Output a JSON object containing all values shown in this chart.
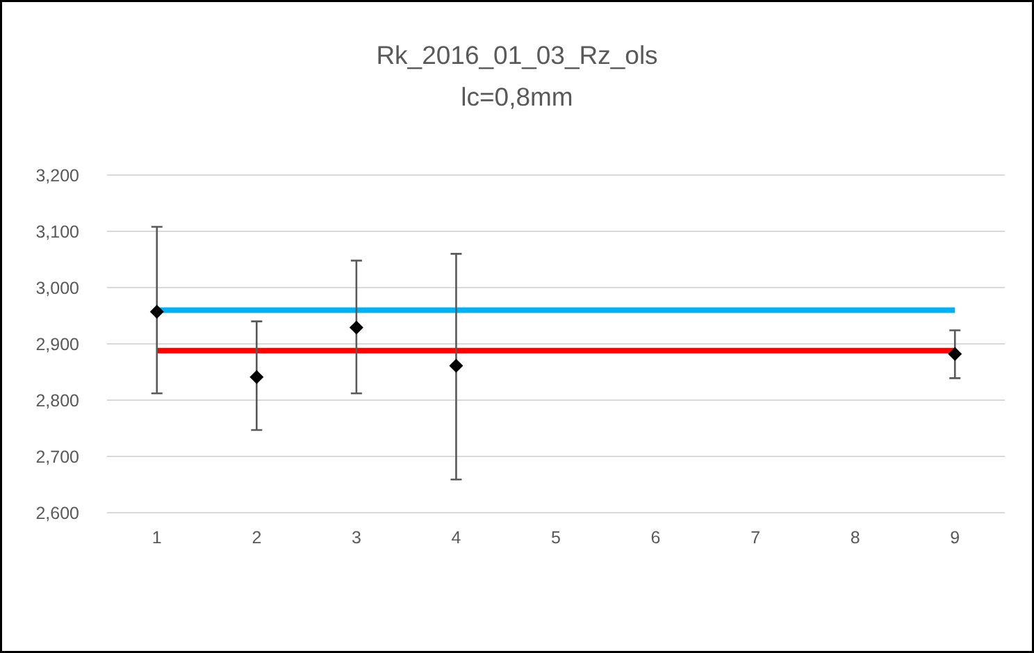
{
  "chart_data": {
    "type": "scatter",
    "title": "Rk_2016_01_03_Rz_ols",
    "subtitle": "lc=0,8mm",
    "categories": [
      "1",
      "2",
      "3",
      "4",
      "5",
      "6",
      "7",
      "8",
      "9"
    ],
    "series": [
      {
        "type": "line",
        "color": "#00b0f0",
        "values": [
          2960,
          2960,
          2960,
          2960,
          2960,
          2960,
          2960,
          2960,
          2960
        ]
      },
      {
        "type": "line",
        "color": "#ff0000",
        "values": [
          2888,
          2888,
          2888,
          2888,
          2888,
          2888,
          2888,
          2888,
          2888
        ]
      },
      {
        "type": "scatter",
        "color": "#000000",
        "marker": "diamond",
        "values": [
          2957,
          2841,
          2929,
          2861,
          null,
          null,
          null,
          null,
          2882
        ],
        "errors": [
          [
            2812,
            3108
          ],
          [
            2747,
            2940
          ],
          [
            2812,
            3048
          ],
          [
            2659,
            3060
          ],
          null,
          null,
          null,
          null,
          [
            2839,
            2924
          ]
        ]
      }
    ],
    "ylim": [
      2600,
      3200
    ],
    "yticks": [
      {
        "value": 2600,
        "label": "2,600"
      },
      {
        "value": 2700,
        "label": "2,700"
      },
      {
        "value": 2800,
        "label": "2,800"
      },
      {
        "value": 2900,
        "label": "2,900"
      },
      {
        "value": 3000,
        "label": "3,000"
      },
      {
        "value": 3100,
        "label": "3,100"
      },
      {
        "value": 3200,
        "label": "3,200"
      }
    ],
    "grid": "y"
  }
}
